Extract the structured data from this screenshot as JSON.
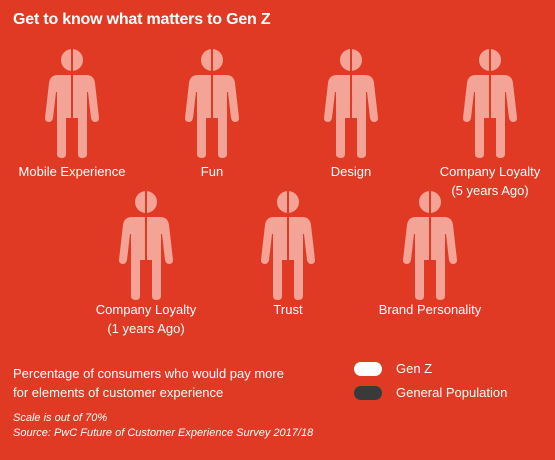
{
  "title": "Get to know what matters to Gen Z",
  "colors": {
    "background": "#e03a24",
    "figure_fill": "#f4a496",
    "gen_z": "#ffffff",
    "general_population": "#3a3a3a"
  },
  "chart_data": {
    "type": "pictograph",
    "title": "Get to know what matters to Gen Z",
    "categories": [
      [
        "Mobile Experience"
      ],
      [
        "Fun"
      ],
      [
        "Design"
      ],
      [
        "Company Loyalty",
        "(5 years Ago)"
      ],
      [
        "Company Loyalty",
        "(1 years Ago)"
      ],
      [
        "Trust"
      ],
      [
        "Brand Personality"
      ]
    ],
    "series": [
      {
        "name": "Gen Z",
        "color": "#ffffff"
      },
      {
        "name": "General Population",
        "color": "#3a3a3a"
      }
    ],
    "description": [
      "Percentage of consumers who would pay more",
      "for elements of customer experience"
    ],
    "scale_note": "Scale is out of 70%",
    "source": "Source: PwC Future of Customer Experience Survey 2017/18"
  }
}
